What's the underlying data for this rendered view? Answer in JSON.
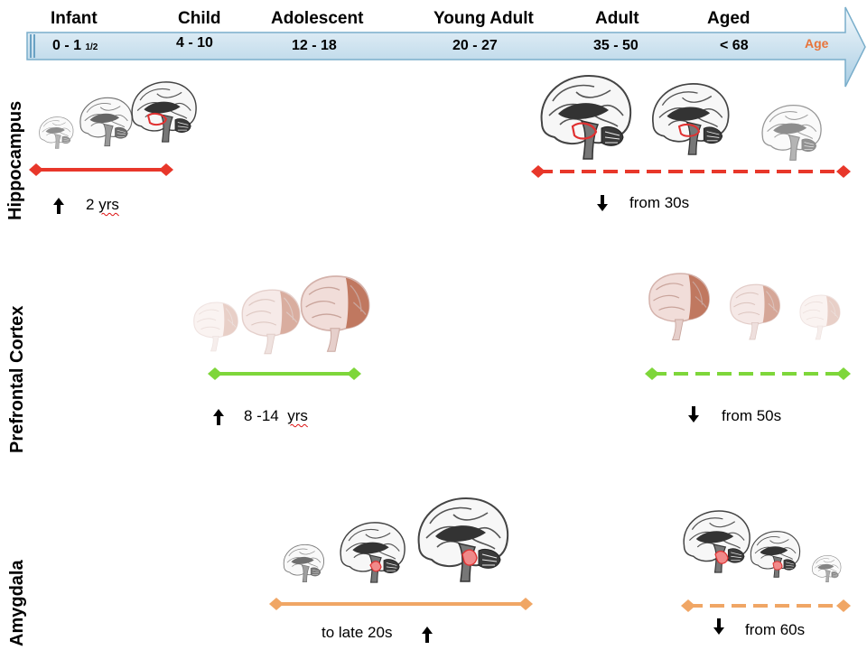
{
  "timeline": {
    "stages": [
      {
        "name": "Infant",
        "age": "0 - 1",
        "age_sub": "1/2"
      },
      {
        "name": "Child",
        "age": "4 - 10"
      },
      {
        "name": "Adolescent",
        "age": "12 - 18"
      },
      {
        "name": "Young Adult",
        "age": "20 - 27"
      },
      {
        "name": "Adult",
        "age": "35 - 50"
      },
      {
        "name": "Aged",
        "age": "< 68"
      }
    ],
    "axis_label": "Age"
  },
  "rows": {
    "hippocampus": {
      "label": "Hippocampus",
      "color": "#e8372a",
      "growth": {
        "prefix": "2",
        "suffix": "yrs"
      },
      "decline": "from 30s"
    },
    "prefrontal": {
      "label": "Prefrontal Cortex",
      "color": "#7ed63a",
      "growth": {
        "prefix": "8 -14",
        "suffix": "yrs"
      },
      "decline": "from 50s"
    },
    "amygdala": {
      "label": "Amygdala",
      "color": "#f0a665",
      "growth_text": "to late 20s",
      "decline": "from 60s"
    }
  },
  "icons": {
    "up": "up-arrow-icon",
    "down": "down-arrow-icon",
    "brain_section": "brain-sagittal-icon",
    "brain_lateral": "brain-lateral-icon"
  }
}
